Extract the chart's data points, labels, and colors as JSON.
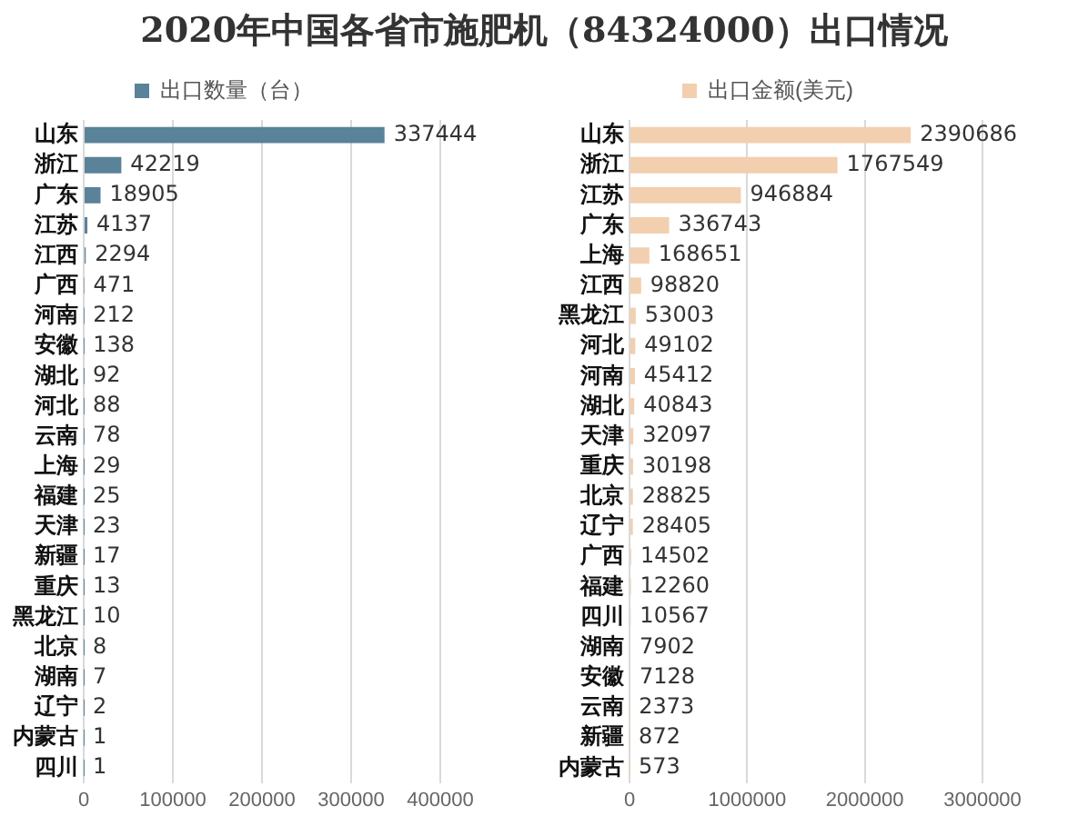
{
  "chart_data": [
    {
      "type": "bar",
      "title": "2020年中国各省市施肥机（84324000）出口情况",
      "orientation": "horizontal",
      "categories": [
        "山东",
        "浙江",
        "广东",
        "江苏",
        "江西",
        "广西",
        "河南",
        "安徽",
        "湖北",
        "河北",
        "云南",
        "上海",
        "福建",
        "天津",
        "新疆",
        "重庆",
        "黑龙江",
        "北京",
        "湖南",
        "辽宁",
        "内蒙古",
        "四川"
      ],
      "series": [
        {
          "name": "出口数量（台）",
          "color": "#5a8299",
          "values": [
            337444,
            42219,
            18905,
            4137,
            2294,
            471,
            212,
            138,
            92,
            88,
            78,
            29,
            25,
            23,
            17,
            13,
            10,
            8,
            7,
            2,
            1,
            1
          ]
        }
      ],
      "xlim": [
        0,
        400000
      ],
      "xticks": [
        0,
        100000,
        200000,
        300000,
        400000
      ],
      "grid": "x",
      "legend": "top",
      "data_labels": true
    },
    {
      "type": "bar",
      "orientation": "horizontal",
      "categories": [
        "山东",
        "浙江",
        "江苏",
        "广东",
        "上海",
        "江西",
        "黑龙江",
        "河北",
        "河南",
        "湖北",
        "天津",
        "重庆",
        "北京",
        "辽宁",
        "广西",
        "福建",
        "四川",
        "湖南",
        "安徽",
        "云南",
        "新疆",
        "内蒙古"
      ],
      "series": [
        {
          "name": "出口金额(美元)",
          "color": "#f2cfae",
          "values": [
            2390686,
            1767549,
            946884,
            336743,
            168651,
            98820,
            53003,
            49102,
            45412,
            40843,
            32097,
            30198,
            28825,
            28405,
            14502,
            12260,
            10567,
            7902,
            7128,
            2373,
            872,
            573
          ]
        }
      ],
      "xlim": [
        0,
        3000000
      ],
      "xticks": [
        0,
        1000000,
        2000000,
        3000000
      ],
      "grid": "x",
      "legend": "top",
      "data_labels": true
    }
  ]
}
